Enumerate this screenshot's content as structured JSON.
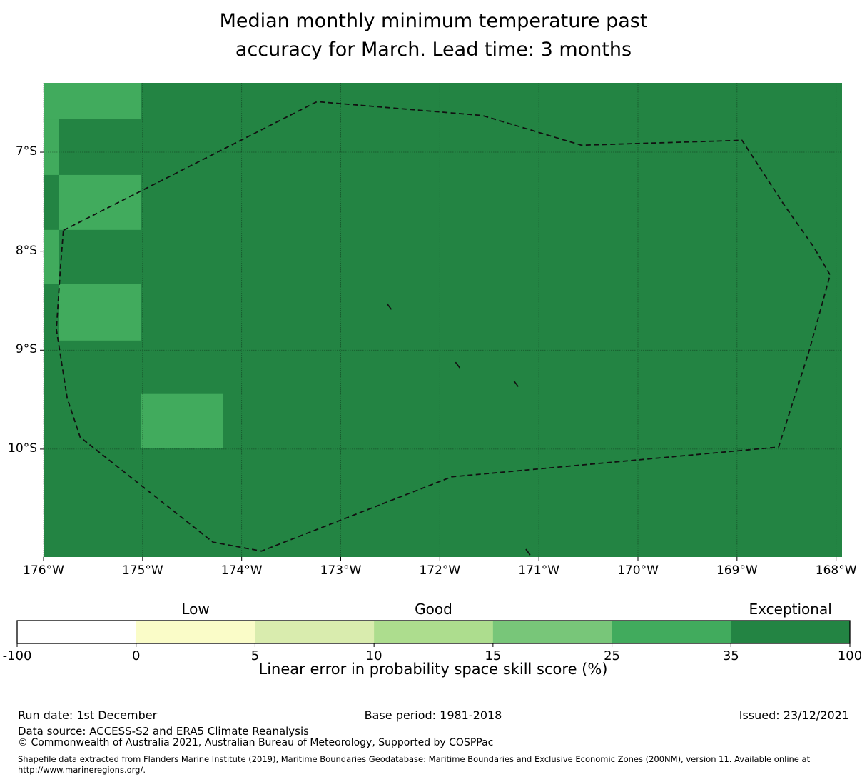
{
  "title": {
    "line1": "Median monthly minimum temperature past",
    "line2": "accuracy for March. Lead time: 3 months"
  },
  "chart_data": {
    "type": "heatmap",
    "title": "Median monthly minimum temperature past accuracy for March. Lead time: 3 months",
    "colorbar_label": "Linear error in probability space skill score (%)",
    "colorbar_category_labels": [
      "Low",
      "Good",
      "Exceptional"
    ],
    "colorbar_category_bin_index": [
      1,
      3,
      6
    ],
    "colorbar_bin_edges": [
      -100,
      0,
      5,
      10,
      15,
      25,
      35,
      100
    ],
    "colorbar_bin_colors": [
      "#ffffff",
      "#fafcc8",
      "#d9ecae",
      "#addd8e",
      "#78c679",
      "#41ab5d",
      "#238443"
    ],
    "background_skill_bin": "35 to 100",
    "highlight_skill_bin": "25 to 35",
    "grid_color": "rgba(0,0,0,0.38)",
    "eez_line_color": "#111111",
    "lon_axis": {
      "range_degW": [
        176.0,
        167.94
      ],
      "ticks": [
        {
          "label": "176°W",
          "degW": 176
        },
        {
          "label": "175°W",
          "degW": 175
        },
        {
          "label": "174°W",
          "degW": 174
        },
        {
          "label": "173°W",
          "degW": 173
        },
        {
          "label": "172°W",
          "degW": 172
        },
        {
          "label": "171°W",
          "degW": 171
        },
        {
          "label": "170°W",
          "degW": 170
        },
        {
          "label": "169°W",
          "degW": 169
        },
        {
          "label": "168°W",
          "degW": 168
        }
      ]
    },
    "lat_axis": {
      "range_degS": [
        6.3,
        11.09
      ],
      "ticks": [
        {
          "label": "7°S",
          "degS": 7
        },
        {
          "label": "8°S",
          "degS": 8
        },
        {
          "label": "9°S",
          "degS": 9
        },
        {
          "label": "10°S",
          "degS": 10
        }
      ]
    },
    "cells_25_35_degW_degS": [
      [
        176.0,
        175.013,
        6.3,
        6.668
      ],
      [
        176.0,
        175.842,
        6.668,
        7.23
      ],
      [
        175.842,
        175.013,
        7.23,
        7.785
      ],
      [
        176.0,
        175.842,
        7.785,
        8.333
      ],
      [
        175.842,
        175.013,
        8.333,
        8.903
      ],
      [
        175.013,
        174.185,
        9.443,
        9.991
      ]
    ],
    "eez_boundary_degW_degS": [
      [
        175.8,
        7.79
      ],
      [
        173.24,
        6.49
      ],
      [
        171.57,
        6.63
      ],
      [
        170.57,
        6.93
      ],
      [
        168.95,
        6.88
      ],
      [
        168.52,
        7.54
      ],
      [
        168.23,
        7.95
      ],
      [
        168.06,
        8.24
      ],
      [
        168.27,
        9.0
      ],
      [
        168.58,
        9.98
      ],
      [
        171.88,
        10.28
      ],
      [
        173.8,
        11.03
      ],
      [
        174.29,
        10.94
      ],
      [
        175.63,
        9.88
      ],
      [
        175.76,
        9.49
      ],
      [
        175.87,
        8.79
      ],
      [
        175.83,
        8.18
      ]
    ],
    "islets_degW_degS": [
      [
        172.51,
        8.56
      ],
      [
        171.82,
        9.15
      ],
      [
        171.23,
        9.34
      ],
      [
        171.11,
        11.04
      ]
    ]
  },
  "footer": {
    "run_date": "Run date: 1st December",
    "base_period": "Base period: 1981-2018",
    "issued": "Issued: 23/12/2021",
    "data_source": "Data source: ACCESS-S2 and ERA5 Climate Reanalysis",
    "copyright": "© Commonwealth of Australia 2021, Australian Bureau of Meteorology, Supported by COSPPac",
    "shapefile_line1": "Shapefile data extracted from Flanders Marine Institute (2019), Maritime Boundaries Geodatabase: Maritime Boundaries and Exclusive Economic Zones (200NM), version 11. Available online at",
    "shapefile_line2": "http://www.marineregions.org/."
  }
}
